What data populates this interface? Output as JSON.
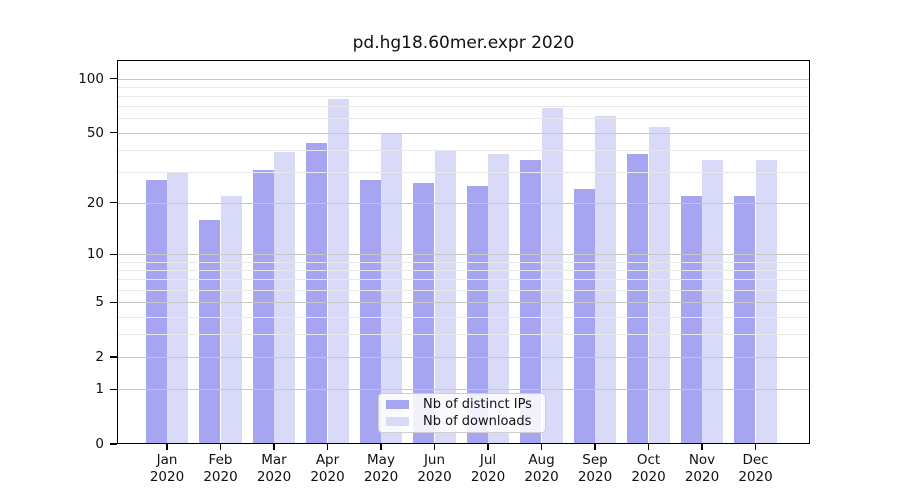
{
  "figure": {
    "title": "pd.hg18.60mer.expr 2020"
  },
  "chart_data": {
    "type": "bar",
    "title": "pd.hg18.60mer.expr 2020",
    "categories": [
      "Jan 2020",
      "Feb 2020",
      "Mar 2020",
      "Apr 2020",
      "May 2020",
      "Jun 2020",
      "Jul 2020",
      "Aug 2020",
      "Sep 2020",
      "Oct 2020",
      "Nov 2020",
      "Dec 2020"
    ],
    "series": [
      {
        "name": "Nb of distinct IPs",
        "color": "#a5a5f1",
        "values": [
          27,
          16,
          31,
          44,
          27,
          26,
          25,
          35,
          24,
          38,
          22,
          22
        ]
      },
      {
        "name": "Nb of downloads",
        "color": "#d9d9f8",
        "values": [
          30,
          22,
          39,
          77,
          50,
          40,
          38,
          69,
          62,
          54,
          35,
          35
        ]
      }
    ],
    "xlabel": "",
    "ylabel": "",
    "yscale": "log1p",
    "ylim": [
      0,
      126
    ],
    "yticks": [
      0,
      1,
      2,
      5,
      10,
      20,
      50,
      100
    ],
    "minor_yticks": [
      3,
      4,
      6,
      7,
      8,
      9,
      30,
      40,
      60,
      70,
      80,
      90
    ],
    "grid": "on",
    "legend_position": "inside-bottom-center"
  },
  "legend": {
    "items": [
      "Nb of distinct IPs",
      "Nb of downloads"
    ]
  },
  "colors": {
    "distinct_ips": "#a5a5f1",
    "downloads": "#d9d9f8",
    "major_grid": "#c6c6c6",
    "minor_grid": "#e9e9e9",
    "spine": "#000000",
    "background": "#ffffff"
  }
}
